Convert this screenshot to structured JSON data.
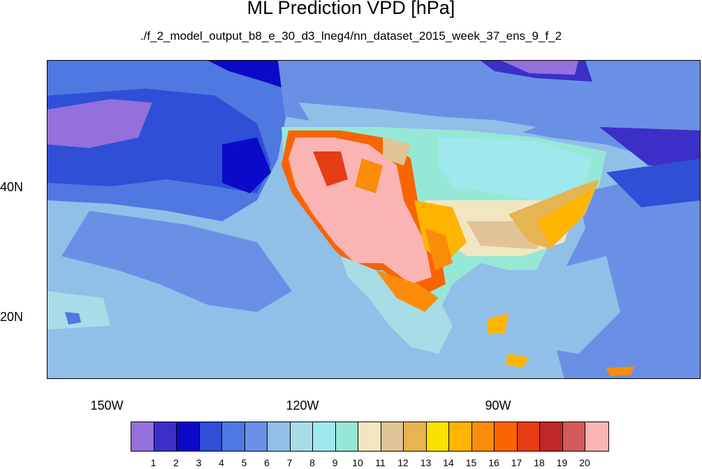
{
  "title": "ML Prediction VPD [hPa]",
  "subtitle": "./f_2_model_output_b8_e_30_d3_lneg4/nn_dataset_2015_week_37_ens_9_f_2",
  "lat_labels": [
    "40N",
    "20N"
  ],
  "lon_labels": [
    "150W",
    "120W",
    "90W"
  ],
  "colorbar": {
    "labels": [
      "1",
      "2",
      "3",
      "4",
      "5",
      "6",
      "7",
      "8",
      "9",
      "10",
      "11",
      "12",
      "13",
      "14",
      "15",
      "16",
      "17",
      "18",
      "19",
      "20"
    ],
    "colors": [
      "#9370db",
      "#3b2fc8",
      "#0a0ac8",
      "#2e4fd6",
      "#4f78e0",
      "#6a90e6",
      "#90bfe8",
      "#a8dce6",
      "#9ee8ee",
      "#96e8d6",
      "#f2e6c2",
      "#e0c496",
      "#e6b450",
      "#fae100",
      "#ffb400",
      "#fa8c0a",
      "#fa6400",
      "#e63c14",
      "#be2828",
      "#d25a5a",
      "#fab4b4"
    ]
  }
}
